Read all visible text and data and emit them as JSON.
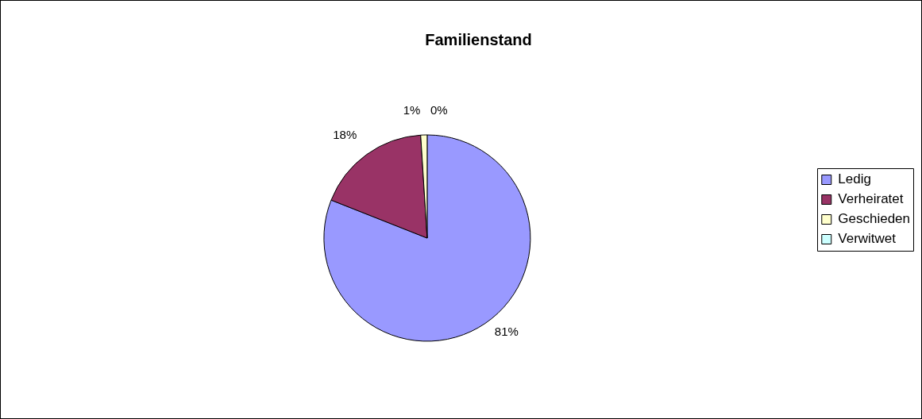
{
  "chart_data": {
    "type": "pie",
    "title": "Familienstand",
    "categories": [
      "Ledig",
      "Verheiratet",
      "Geschieden",
      "Verwitwet"
    ],
    "values": [
      81,
      18,
      1,
      0
    ],
    "colors": [
      "#9999ff",
      "#993366",
      "#ffffcc",
      "#ccffff"
    ],
    "value_labels": [
      "81%",
      "18%",
      "1%",
      "0%"
    ],
    "legend": "right"
  }
}
